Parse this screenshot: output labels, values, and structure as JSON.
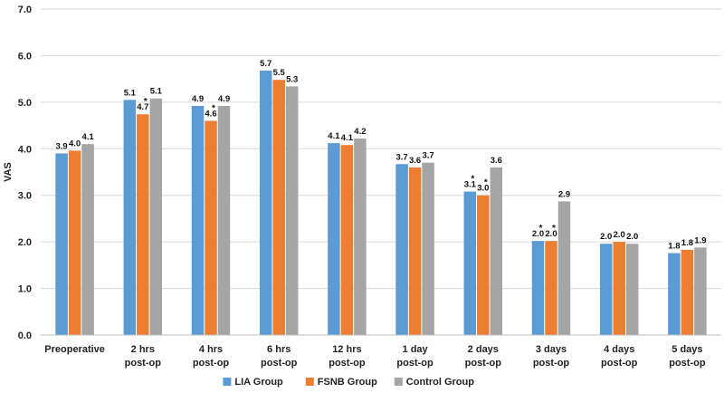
{
  "chart_data": {
    "type": "bar",
    "title": "",
    "xlabel": "",
    "ylabel": "VAS",
    "ylim": [
      0,
      7
    ],
    "yticks": [
      "0.0",
      "1.0",
      "2.0",
      "3.0",
      "4.0",
      "5.0",
      "6.0",
      "7.0"
    ],
    "categories": [
      [
        "Preoperative"
      ],
      [
        "2 hrs",
        "post-op"
      ],
      [
        "4 hrs",
        "post-op"
      ],
      [
        "6 hrs",
        "post-op"
      ],
      [
        "12 hrs",
        "post-op"
      ],
      [
        "1 day",
        "post-op"
      ],
      [
        "2 days",
        "post-op"
      ],
      [
        "3 days",
        "post-op"
      ],
      [
        "4 days",
        "post-op"
      ],
      [
        "5 days",
        "post-op"
      ]
    ],
    "series": [
      {
        "name": "LIA Group",
        "color": "#5B9BD5",
        "values": [
          3.9,
          5.05,
          4.92,
          5.68,
          4.12,
          3.67,
          3.08,
          2.02,
          1.96,
          1.76
        ],
        "labels": [
          "3.9",
          "5.1",
          "4.9",
          "5.7",
          "4.1",
          "3.7",
          "3.1",
          "2.0",
          "2.0",
          "1.8"
        ],
        "stars": [
          false,
          false,
          false,
          false,
          false,
          false,
          true,
          true,
          false,
          false
        ]
      },
      {
        "name": "FSNB Group",
        "color": "#ED7D31",
        "values": [
          3.96,
          4.74,
          4.6,
          5.48,
          4.08,
          3.6,
          3.0,
          2.02,
          2.0,
          1.83
        ],
        "labels": [
          "4.0",
          "4.7",
          "4.6",
          "5.5",
          "4.1",
          "3.6",
          "3.0",
          "2.0",
          "2.0",
          "1.8"
        ],
        "stars": [
          false,
          true,
          true,
          false,
          false,
          false,
          true,
          true,
          false,
          false
        ]
      },
      {
        "name": "Control Group",
        "color": "#A5A5A5",
        "values": [
          4.1,
          5.08,
          4.92,
          5.34,
          4.22,
          3.7,
          3.6,
          2.87,
          1.96,
          1.88
        ],
        "labels": [
          "4.1",
          "5.1",
          "4.9",
          "5.3",
          "4.2",
          "3.7",
          "3.6",
          "2.9",
          "2.0",
          "1.9"
        ],
        "stars": [
          false,
          false,
          false,
          false,
          false,
          false,
          false,
          false,
          false,
          false
        ]
      }
    ],
    "star_symbol": "*",
    "grid": true,
    "legend": "bottom",
    "colors": {
      "grid": "#D9D9D9",
      "axis": "#BFBFBF"
    }
  }
}
